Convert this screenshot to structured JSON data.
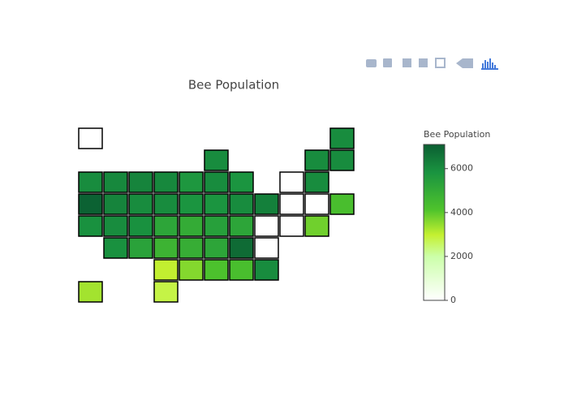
{
  "chart_data": {
    "type": "choropleth",
    "title": "Bee Population",
    "colorbar_title": "Bee Population",
    "values": [
      null,
      6000,
      6000,
      6000,
      6000,
      6000,
      6100,
      6200,
      6100,
      5700,
      6000,
      5800,
      null,
      6000,
      7000,
      6200,
      6000,
      6000,
      5800,
      5800,
      6000,
      6300,
      null,
      null,
      4300,
      5900,
      6000,
      5900,
      5200,
      5000,
      5400,
      5200,
      null,
      null,
      3800,
      5900,
      5300,
      4700,
      4900,
      5200,
      6800,
      null,
      3000,
      3600,
      4200,
      4300,
      6000,
      3300,
      2800
    ],
    "zlim": [
      0,
      7100
    ],
    "zticks": [
      0,
      2000,
      4000,
      6000
    ],
    "colorscale": [
      [
        0,
        "#ffffff"
      ],
      [
        0.28,
        "#ccffaa"
      ],
      [
        0.42,
        "#c4f030"
      ],
      [
        0.58,
        "#4fc32c"
      ],
      [
        0.82,
        "#1a9440"
      ],
      [
        1,
        "#0b5e32"
      ]
    ],
    "border_color": "#000000"
  }
}
